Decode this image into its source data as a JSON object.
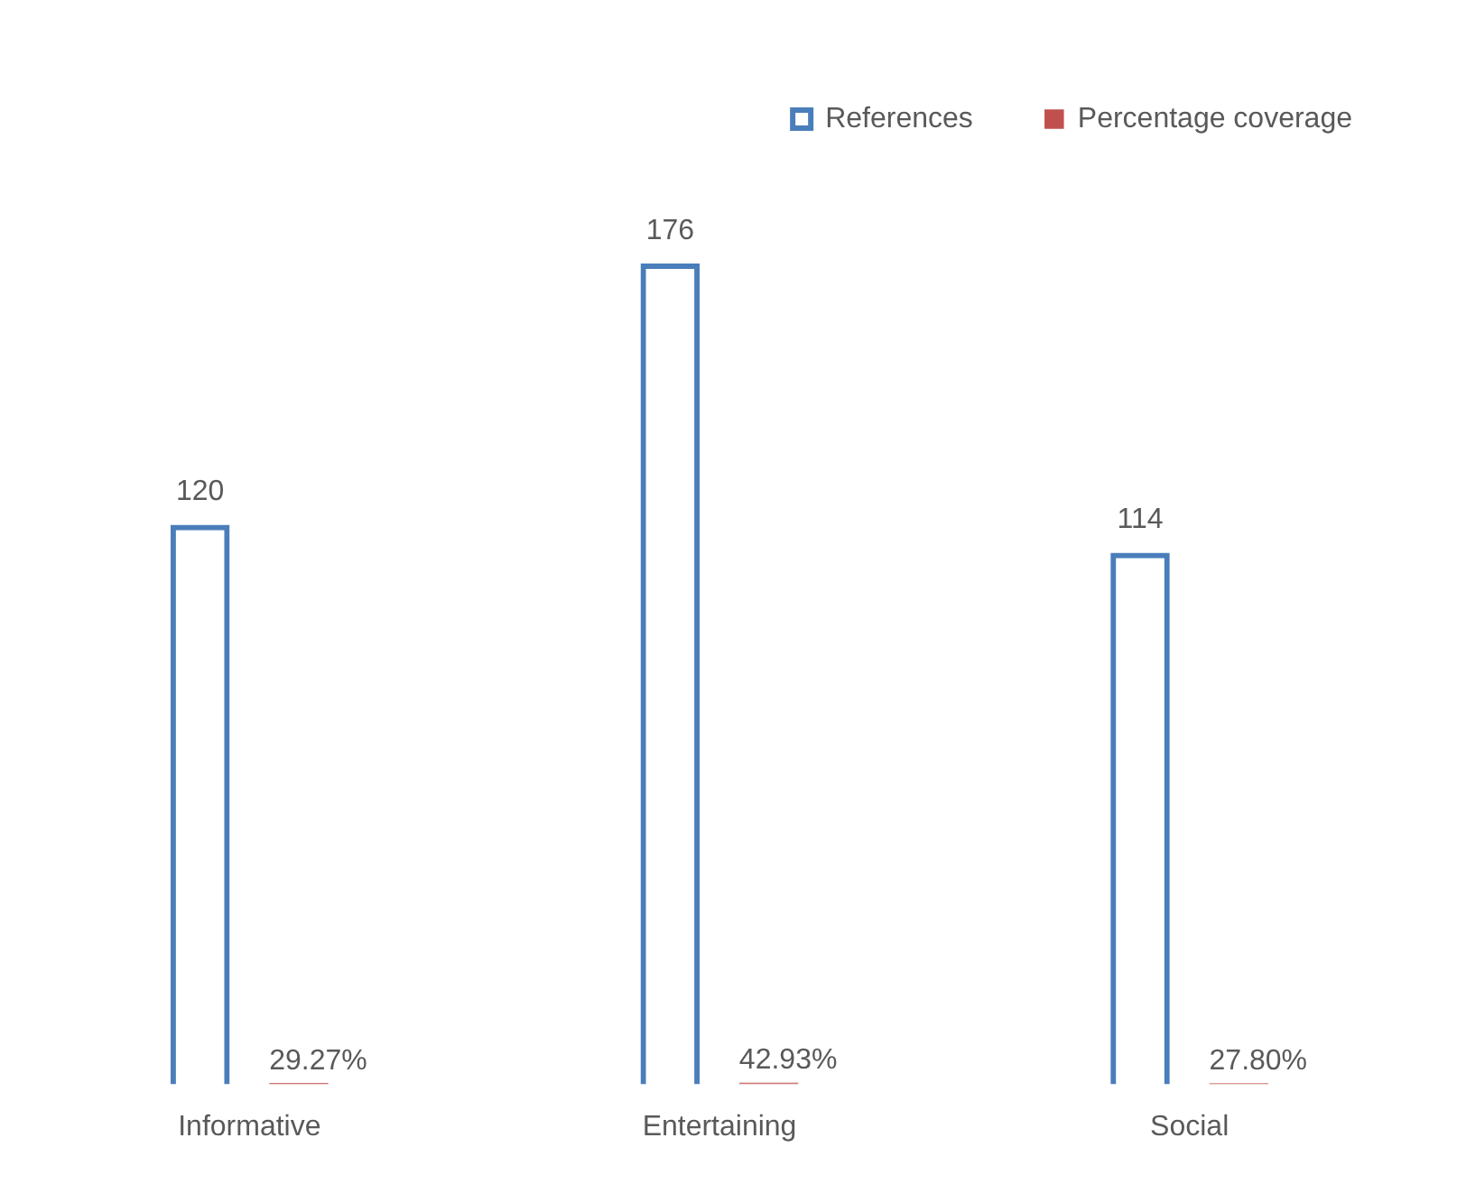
{
  "chart_data": {
    "type": "bar",
    "categories": [
      "Informative",
      "Entertaining",
      "Social"
    ],
    "series": [
      {
        "name": "References",
        "color": "#4a7ebb",
        "values": [
          120,
          176,
          114
        ],
        "value_labels": [
          "120",
          "176",
          "114"
        ]
      },
      {
        "name": "Percentage coverage",
        "color": "#c0504d",
        "values": [
          0.2927,
          0.4293,
          0.278
        ],
        "value_labels": [
          "29.27%",
          "42.93%",
          "27.80%"
        ]
      }
    ],
    "legend": "top right",
    "grid": false,
    "tick_labels": "x"
  }
}
